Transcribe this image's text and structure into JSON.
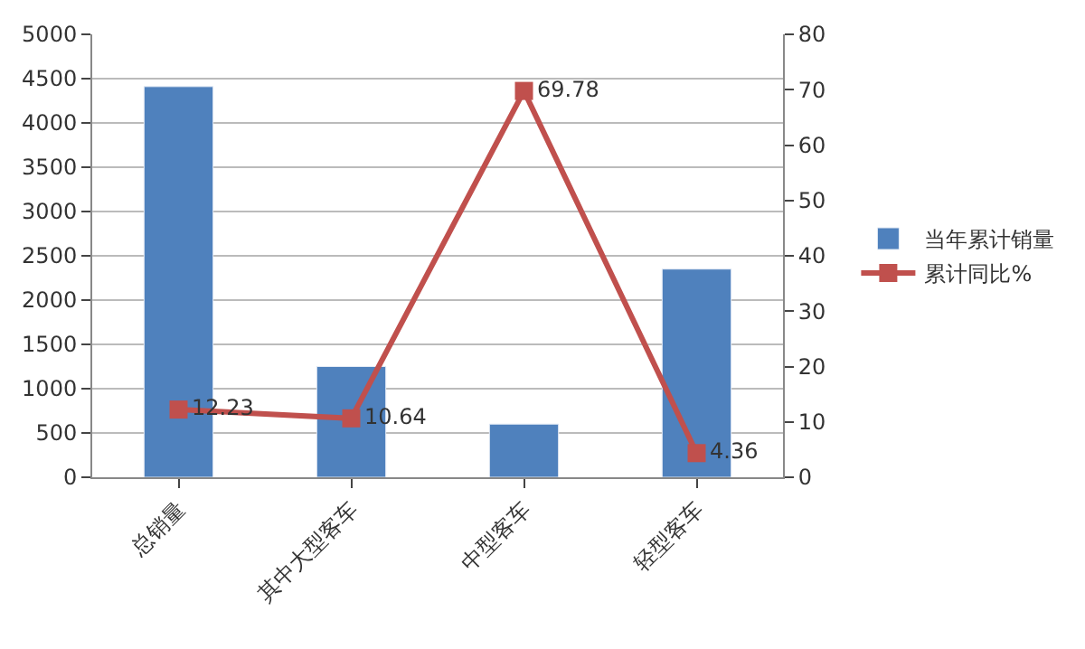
{
  "chart_data": {
    "type": "bar",
    "categories": [
      "总销量",
      "其中大型客车",
      "中型客车",
      "轻型客车"
    ],
    "series": [
      {
        "name": "当年累计销量",
        "color": "#4f81bd",
        "values": [
          4410,
          1250,
          600,
          2350
        ]
      },
      {
        "name": "累计同比%",
        "type": "line",
        "axis": "y2",
        "color": "#c0504d",
        "values": [
          12.23,
          10.64,
          69.78,
          4.36
        ],
        "value_labels": [
          "12.23",
          "10.64",
          "69.78",
          "4.36"
        ],
        "marker": "square"
      }
    ],
    "ylim": [
      0,
      5000
    ],
    "yticks": [
      0,
      500,
      1000,
      1500,
      2000,
      2500,
      3000,
      3500,
      4000,
      4500,
      5000
    ],
    "y2lim": [
      0,
      80
    ],
    "y2ticks": [
      0,
      10,
      20,
      30,
      40,
      50,
      60,
      70,
      80
    ],
    "grid": "y",
    "legend": "right"
  }
}
